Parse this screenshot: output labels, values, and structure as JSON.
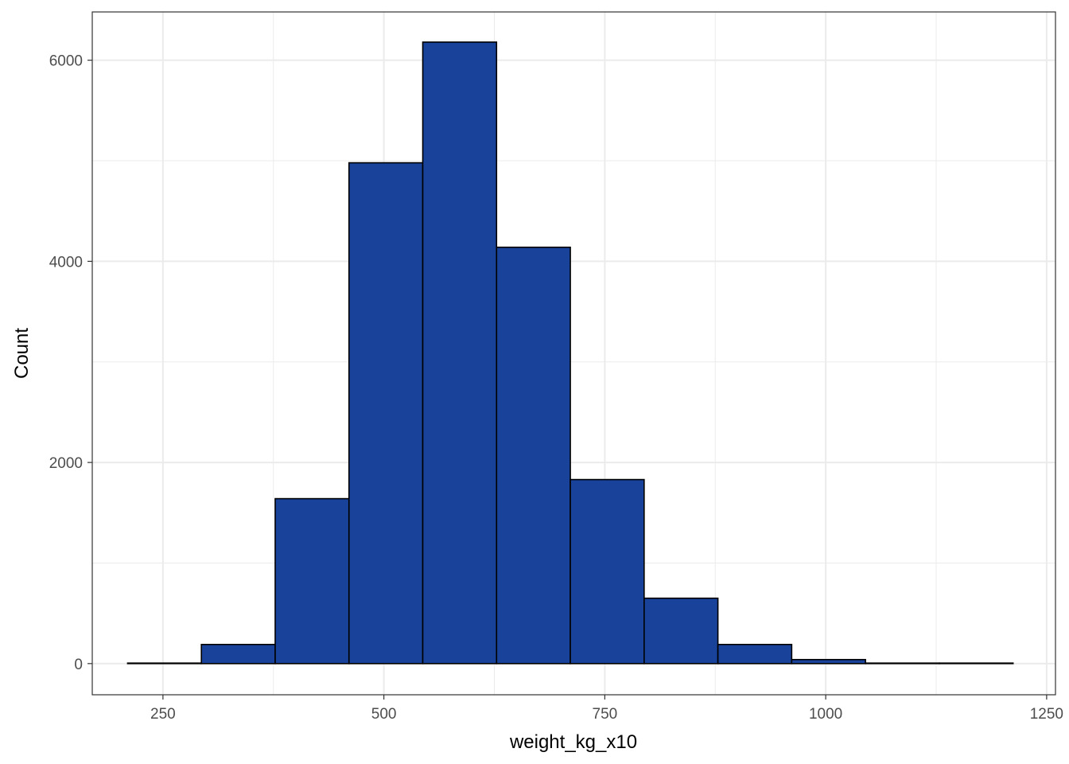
{
  "chart_data": {
    "type": "bar",
    "subtype": "histogram",
    "title": "",
    "xlabel": "weight_kg_x10",
    "ylabel": "Count",
    "xlim": [
      170,
      1260
    ],
    "ylim": [
      -310,
      6480
    ],
    "x_ticks": [
      250,
      500,
      750,
      1000,
      1250
    ],
    "y_ticks": [
      0,
      2000,
      4000,
      6000
    ],
    "bin_edges": [
      210,
      293.5,
      377,
      460.5,
      544,
      627.5,
      711,
      794.5,
      878,
      961.5,
      1045,
      1128.5,
      1212
    ],
    "values": [
      5,
      190,
      1640,
      4980,
      6180,
      4140,
      1830,
      650,
      190,
      40,
      5,
      5
    ],
    "grid": true,
    "colors": {
      "bar_fill": "#19439A",
      "bar_stroke": "#000000",
      "grid": "#EBEBEB",
      "panel_border": "#333333"
    }
  }
}
